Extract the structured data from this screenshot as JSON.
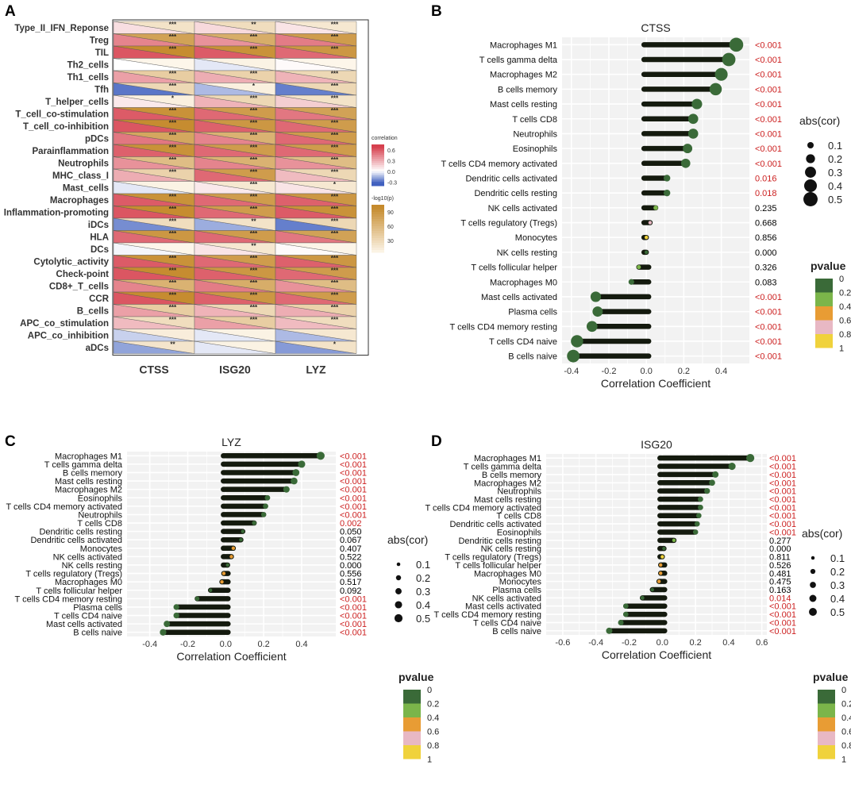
{
  "panel_letters": [
    "A",
    "B",
    "C",
    "D"
  ],
  "chart_data": [
    {
      "type": "heatmap",
      "panel": "A",
      "title": "",
      "rows": [
        "Type_II_IFN_Reponse",
        "Treg",
        "TIL",
        "Th2_cells",
        "Th1_cells",
        "Tfh",
        "T_helper_cells",
        "T_cell_co-stimulation",
        "T_cell_co-inhibition",
        "pDCs",
        "Parainflammation",
        "Neutrophils",
        "MHC_class_I",
        "Mast_cells",
        "Macrophages",
        "Inflammation-promoting",
        "iDCs",
        "HLA",
        "DCs",
        "Cytolytic_activity",
        "Check-point",
        "CD8+_T_cells",
        "CCR",
        "B_cells",
        "APC_co_stimulation",
        "APC_co_inhibition",
        "aDCs"
      ],
      "columns": [
        "CTSS",
        "ISG20",
        "LYZ"
      ],
      "correlation": [
        [
          0.12,
          0.14,
          0.1
        ],
        [
          0.45,
          0.4,
          0.48
        ],
        [
          0.62,
          0.6,
          0.55
        ],
        [
          0.0,
          -0.05,
          0.02
        ],
        [
          0.35,
          0.3,
          0.28
        ],
        [
          -0.3,
          -0.15,
          -0.28
        ],
        [
          0.08,
          0.28,
          0.18
        ],
        [
          0.6,
          0.55,
          0.5
        ],
        [
          0.62,
          0.58,
          0.55
        ],
        [
          0.5,
          0.45,
          0.55
        ],
        [
          0.58,
          0.55,
          0.55
        ],
        [
          0.4,
          0.45,
          0.4
        ],
        [
          0.3,
          0.55,
          0.25
        ],
        [
          -0.05,
          0.08,
          0.1
        ],
        [
          0.6,
          0.55,
          0.58
        ],
        [
          0.62,
          0.55,
          0.6
        ],
        [
          -0.25,
          -0.18,
          -0.28
        ],
        [
          0.55,
          0.55,
          0.5
        ],
        [
          -0.02,
          0.1,
          0.02
        ],
        [
          0.6,
          0.55,
          0.58
        ],
        [
          0.62,
          0.58,
          0.55
        ],
        [
          0.45,
          0.48,
          0.4
        ],
        [
          0.62,
          0.58,
          0.55
        ],
        [
          0.35,
          0.28,
          0.3
        ],
        [
          0.25,
          0.35,
          0.25
        ],
        [
          -0.1,
          -0.05,
          -0.15
        ],
        [
          -0.2,
          -0.05,
          -0.22
        ]
      ],
      "log10p": [
        [
          20,
          25,
          15
        ],
        [
          80,
          70,
          85
        ],
        [
          100,
          95,
          90
        ],
        [
          2,
          5,
          2
        ],
        [
          40,
          35,
          30
        ],
        [
          30,
          8,
          30
        ],
        [
          8,
          30,
          20
        ],
        [
          95,
          85,
          80
        ],
        [
          100,
          90,
          85
        ],
        [
          75,
          65,
          85
        ],
        [
          95,
          85,
          85
        ],
        [
          55,
          65,
          55
        ],
        [
          35,
          85,
          30
        ],
        [
          5,
          15,
          15
        ],
        [
          95,
          85,
          90
        ],
        [
          100,
          85,
          95
        ],
        [
          25,
          20,
          30
        ],
        [
          90,
          85,
          80
        ],
        [
          2,
          15,
          3
        ],
        [
          95,
          85,
          90
        ],
        [
          100,
          90,
          85
        ],
        [
          65,
          70,
          55
        ],
        [
          100,
          90,
          85
        ],
        [
          40,
          30,
          35
        ],
        [
          25,
          40,
          25
        ],
        [
          10,
          5,
          15
        ],
        [
          18,
          5,
          20
        ]
      ],
      "stars": [
        [
          "***",
          "**",
          "***"
        ],
        [
          "***",
          "***",
          "***"
        ],
        [
          "***",
          "***",
          "***"
        ],
        [
          "",
          "",
          ""
        ],
        [
          "***",
          "***",
          "***"
        ],
        [
          "***",
          "*",
          "***"
        ],
        [
          "*",
          "***",
          "***"
        ],
        [
          "***",
          "***",
          "***"
        ],
        [
          "***",
          "***",
          "***"
        ],
        [
          "***",
          "***",
          "***"
        ],
        [
          "***",
          "***",
          "***"
        ],
        [
          "***",
          "***",
          "***"
        ],
        [
          "***",
          "***",
          "***"
        ],
        [
          "",
          "***",
          "*"
        ],
        [
          "***",
          "***",
          "***"
        ],
        [
          "***",
          "***",
          "***"
        ],
        [
          "***",
          "**",
          "***"
        ],
        [
          "***",
          "***",
          "***"
        ],
        [
          "",
          "**",
          ""
        ],
        [
          "***",
          "***",
          "***"
        ],
        [
          "***",
          "***",
          "***"
        ],
        [
          "***",
          "***",
          "***"
        ],
        [
          "***",
          "***",
          "***"
        ],
        [
          "***",
          "***",
          "***"
        ],
        [
          "***",
          "***",
          "***"
        ],
        [
          "",
          "",
          ""
        ],
        [
          "**",
          "",
          "*"
        ]
      ],
      "legend_correlation": {
        "title": "correlation",
        "ticks": [
          "0.6",
          "0.3",
          "0.0",
          "-0.3"
        ],
        "tick_values": [
          0.6,
          0.3,
          0.0,
          -0.3
        ],
        "range": [
          -0.4,
          0.75
        ]
      },
      "legend_log10p": {
        "title": "-log10(p)",
        "ticks": [
          "90",
          "60",
          "30"
        ],
        "tick_values": [
          90,
          60,
          30
        ],
        "range": [
          5,
          105
        ]
      }
    },
    {
      "type": "lollipop",
      "panel": "B",
      "title": "CTSS",
      "xlabel": "Correlation Coefficient",
      "xlim": [
        -0.45,
        0.55
      ],
      "xticks": [
        -0.4,
        -0.2,
        0.0,
        0.2,
        0.4
      ],
      "xtick_labels": [
        "-0.4",
        "-0.2",
        "0.0",
        "0.2",
        "0.4"
      ],
      "categories": [
        "Macrophages M1",
        "T cells gamma delta",
        "Macrophages M2",
        "B cells memory",
        "Mast cells resting",
        "T cells CD8",
        "Neutrophils",
        "Eosinophils",
        "T cells CD4 memory activated",
        "Dendritic cells activated",
        "Dendritic cells resting",
        "NK cells activated",
        "T cells regulatory (Tregs)",
        "Monocytes",
        "NK cells resting",
        "T cells follicular helper",
        "Macrophages M0",
        "Mast cells activated",
        "Plasma cells",
        "T cells CD4 memory resting",
        "T cells CD4 naive",
        "B cells naive"
      ],
      "values": [
        0.48,
        0.44,
        0.4,
        0.37,
        0.27,
        0.25,
        0.25,
        0.22,
        0.21,
        0.11,
        0.11,
        0.05,
        0.02,
        0.0,
        0.0,
        -0.04,
        -0.08,
        -0.27,
        -0.26,
        -0.29,
        -0.37,
        -0.39
      ],
      "pvalues": [
        0.0001,
        0.0001,
        0.0001,
        0.0001,
        0.0001,
        0.0001,
        0.0001,
        0.0001,
        0.0001,
        0.016,
        0.018,
        0.235,
        0.668,
        0.856,
        0.0,
        0.326,
        0.083,
        0.0001,
        0.0001,
        0.0001,
        0.0001,
        0.0001
      ],
      "pvalue_labels": [
        "<0.001",
        "<0.001",
        "<0.001",
        "<0.001",
        "<0.001",
        "<0.001",
        "<0.001",
        "<0.001",
        "<0.001",
        "0.016",
        "0.018",
        "0.235",
        "0.668",
        "0.856",
        "0.000",
        "0.326",
        "0.083",
        "<0.001",
        "<0.001",
        "<0.001",
        "<0.001",
        "<0.001"
      ],
      "significant": [
        true,
        true,
        true,
        true,
        true,
        true,
        true,
        true,
        true,
        true,
        true,
        false,
        false,
        false,
        false,
        false,
        false,
        true,
        true,
        true,
        true,
        true
      ]
    },
    {
      "type": "lollipop",
      "panel": "C",
      "title": "LYZ",
      "xlabel": "Correlation Coefficient",
      "xlim": [
        -0.52,
        0.58
      ],
      "xticks": [
        -0.4,
        -0.2,
        0.0,
        0.2,
        0.4
      ],
      "xtick_labels": [
        "-0.4",
        "-0.2",
        "0.0",
        "0.2",
        "0.4"
      ],
      "categories": [
        "Macrophages M1",
        "T cells gamma delta",
        "B cells memory",
        "Mast cells resting",
        "Macrophages M2",
        "Eosinophils",
        "T cells CD4 memory activated",
        "Neutrophils",
        "T cells CD8",
        "Dendritic cells resting",
        "Dendritic cells activated",
        "Monocytes",
        "NK cells activated",
        "NK cells resting",
        "T cells regulatory (Tregs)",
        "Macrophages M0",
        "T cells follicular helper",
        "T cells CD4 memory resting",
        "Plasma cells",
        "T cells CD4 naive",
        "Mast cells activated",
        "B cells naive"
      ],
      "values": [
        0.5,
        0.4,
        0.37,
        0.36,
        0.32,
        0.22,
        0.21,
        0.2,
        0.15,
        0.09,
        0.08,
        0.04,
        0.03,
        0.01,
        -0.01,
        -0.02,
        -0.08,
        -0.15,
        -0.26,
        -0.26,
        -0.31,
        -0.33
      ],
      "pvalues": [
        0.0001,
        0.0001,
        0.0001,
        0.0001,
        0.0001,
        0.0001,
        0.0001,
        0.0001,
        0.002,
        0.05,
        0.067,
        0.407,
        0.522,
        0.0,
        0.556,
        0.517,
        0.092,
        0.0001,
        0.0001,
        0.0001,
        0.0001,
        0.0001
      ],
      "pvalue_labels": [
        "<0.001",
        "<0.001",
        "<0.001",
        "<0.001",
        "<0.001",
        "<0.001",
        "<0.001",
        "<0.001",
        "0.002",
        "0.050",
        "0.067",
        "0.407",
        "0.522",
        "0.000",
        "0.556",
        "0.517",
        "0.092",
        "<0.001",
        "<0.001",
        "<0.001",
        "<0.001",
        "<0.001"
      ],
      "significant": [
        true,
        true,
        true,
        true,
        true,
        true,
        true,
        true,
        true,
        false,
        false,
        false,
        false,
        false,
        false,
        false,
        false,
        true,
        true,
        true,
        true,
        true
      ]
    },
    {
      "type": "lollipop",
      "panel": "D",
      "title": "ISG20",
      "xlabel": "Correlation Coefficient",
      "xlim": [
        -0.7,
        0.63
      ],
      "xticks": [
        -0.6,
        -0.4,
        -0.2,
        0.0,
        0.2,
        0.4,
        0.6
      ],
      "xtick_labels": [
        "-0.6",
        "-0.4",
        "-0.2",
        "0.0",
        "0.2",
        "0.4",
        "0.6"
      ],
      "categories": [
        "Macrophages M1",
        "T cells gamma delta",
        "B cells memory",
        "Macrophages M2",
        "Neutrophils",
        "Mast cells resting",
        "T cells CD4 memory activated",
        "T cells CD8",
        "Dendritic cells activated",
        "Eosinophils",
        "Dendritic cells resting",
        "NK cells resting",
        "T cells regulatory (Tregs)",
        "T cells follicular helper",
        "Macrophages M0",
        "Monocytes",
        "Plasma cells",
        "NK cells activated",
        "Mast cells activated",
        "T cells CD4 memory resting",
        "T cells CD4 naive",
        "B cells naive"
      ],
      "values": [
        0.53,
        0.42,
        0.32,
        0.3,
        0.27,
        0.23,
        0.23,
        0.22,
        0.21,
        0.2,
        0.07,
        0.01,
        0.0,
        -0.01,
        -0.01,
        -0.02,
        -0.06,
        -0.12,
        -0.22,
        -0.22,
        -0.25,
        -0.32
      ],
      "pvalues": [
        0.0001,
        0.0001,
        0.0001,
        0.0001,
        0.0001,
        0.0001,
        0.0001,
        0.0001,
        0.0001,
        0.0001,
        0.277,
        0.0,
        0.811,
        0.526,
        0.481,
        0.475,
        0.163,
        0.014,
        0.0001,
        0.0001,
        0.0001,
        0.0001
      ],
      "pvalue_labels": [
        "<0.001",
        "<0.001",
        "<0.001",
        "<0.001",
        "<0.001",
        "<0.001",
        "<0.001",
        "<0.001",
        "<0.001",
        "<0.001",
        "0.277",
        "0.000",
        "0.811",
        "0.526",
        "0.481",
        "0.475",
        "0.163",
        "0.014",
        "<0.001",
        "<0.001",
        "<0.001",
        "<0.001"
      ],
      "significant": [
        true,
        true,
        true,
        true,
        true,
        true,
        true,
        true,
        true,
        true,
        false,
        false,
        false,
        false,
        false,
        false,
        false,
        true,
        true,
        true,
        true,
        true
      ]
    }
  ],
  "legends": {
    "size_title": "abs(cor)",
    "size_values": [
      0.1,
      0.2,
      0.3,
      0.4,
      0.5
    ],
    "size_labels": [
      "0.1",
      "0.2",
      "0.3",
      "0.4",
      "0.5"
    ],
    "pvalue_title": "pvalue",
    "pvalue_labels": [
      "0",
      "0.2",
      "0.4",
      "0.6",
      "0.8",
      "1"
    ],
    "pvalue_colors": [
      "#3a6a38",
      "#7bb54a",
      "#e89c34",
      "#e8b8c4",
      "#f0d23c"
    ],
    "colors": {
      "stick": "#141a0e",
      "sig_text": "#cc1f1f",
      "nonsig_text": "#000000",
      "panel_bg": "#f2f2f2",
      "grid": "#ffffff",
      "heat_pos": "#d6404e",
      "heat_neg": "#3f5fbf",
      "heat_p_high": "#c58a2c"
    }
  }
}
